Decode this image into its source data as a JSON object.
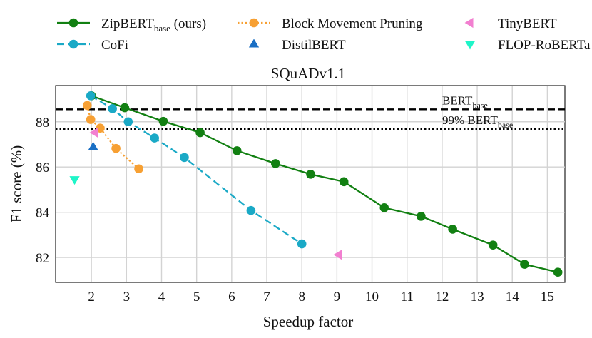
{
  "chart_data": {
    "type": "line",
    "title": "SQuADv1.1",
    "xlabel": "Speedup factor",
    "ylabel": "F1 score (%)",
    "xlim": [
      0.98,
      15.5
    ],
    "ylim": [
      80.9,
      89.6
    ],
    "xticks": [
      "2",
      "3",
      "4",
      "5",
      "6",
      "7",
      "8",
      "9",
      "10",
      "11",
      "12",
      "13",
      "14",
      "15"
    ],
    "yticks": [
      "82",
      "84",
      "86",
      "88"
    ],
    "grid": true,
    "reference_lines": [
      {
        "name": "bert-base-line",
        "label_main": "BERT",
        "label_sub": "base",
        "label_prefix": "",
        "y": 88.55,
        "style": "dashed"
      },
      {
        "name": "bert-99-line",
        "label_main": "BERT",
        "label_sub": "base",
        "label_prefix": "99% ",
        "y": 87.67,
        "style": "dotted"
      }
    ],
    "series": [
      {
        "name": "ZipBERT (ours)",
        "legend_main": "ZipBERT",
        "legend_sub": "base",
        "legend_suffix": " (ours)",
        "color": "#128012",
        "marker": "circle",
        "line": "solid",
        "x": [
          2.0,
          2.95,
          4.05,
          5.1,
          6.15,
          7.25,
          8.25,
          9.2,
          10.35,
          11.4,
          12.3,
          13.45,
          14.35,
          15.3
        ],
        "y": [
          89.15,
          88.62,
          88.02,
          87.52,
          86.72,
          86.15,
          85.68,
          85.35,
          84.2,
          83.82,
          83.25,
          82.55,
          81.7,
          81.35
        ]
      },
      {
        "name": "CoFi",
        "legend_main": "CoFi",
        "color": "#1aa9c6",
        "marker": "circle",
        "line": "dashed",
        "x": [
          1.98,
          2.6,
          3.05,
          3.8,
          4.65,
          6.55,
          8.0
        ],
        "y": [
          89.15,
          88.58,
          88.0,
          87.28,
          86.42,
          84.08,
          82.6
        ]
      },
      {
        "name": "Block Movement Pruning",
        "legend_main": "Block Movement Pruning",
        "color": "#f7a033",
        "marker": "circle",
        "line": "dotted",
        "x": [
          1.88,
          1.98,
          2.25,
          2.7,
          3.35
        ],
        "y": [
          88.72,
          88.1,
          87.72,
          86.82,
          85.92
        ]
      },
      {
        "name": "DistilBERT",
        "legend_main": "DistilBERT",
        "color": "#1a6fc4",
        "marker": "triangle-up",
        "line": "none",
        "x": [
          2.05
        ],
        "y": [
          86.88
        ]
      },
      {
        "name": "TinyBERT",
        "legend_main": "TinyBERT",
        "color": "#f27fd0",
        "marker": "triangle-left",
        "line": "none",
        "x": [
          2.1,
          9.05
        ],
        "y": [
          87.52,
          82.12
        ]
      },
      {
        "name": "FLOP-RoBERTa",
        "legend_main": "FLOP-RoBERTa",
        "color": "#1ef5c8",
        "marker": "triangle-down",
        "line": "none",
        "x": [
          1.52
        ],
        "y": [
          85.45
        ]
      }
    ]
  }
}
